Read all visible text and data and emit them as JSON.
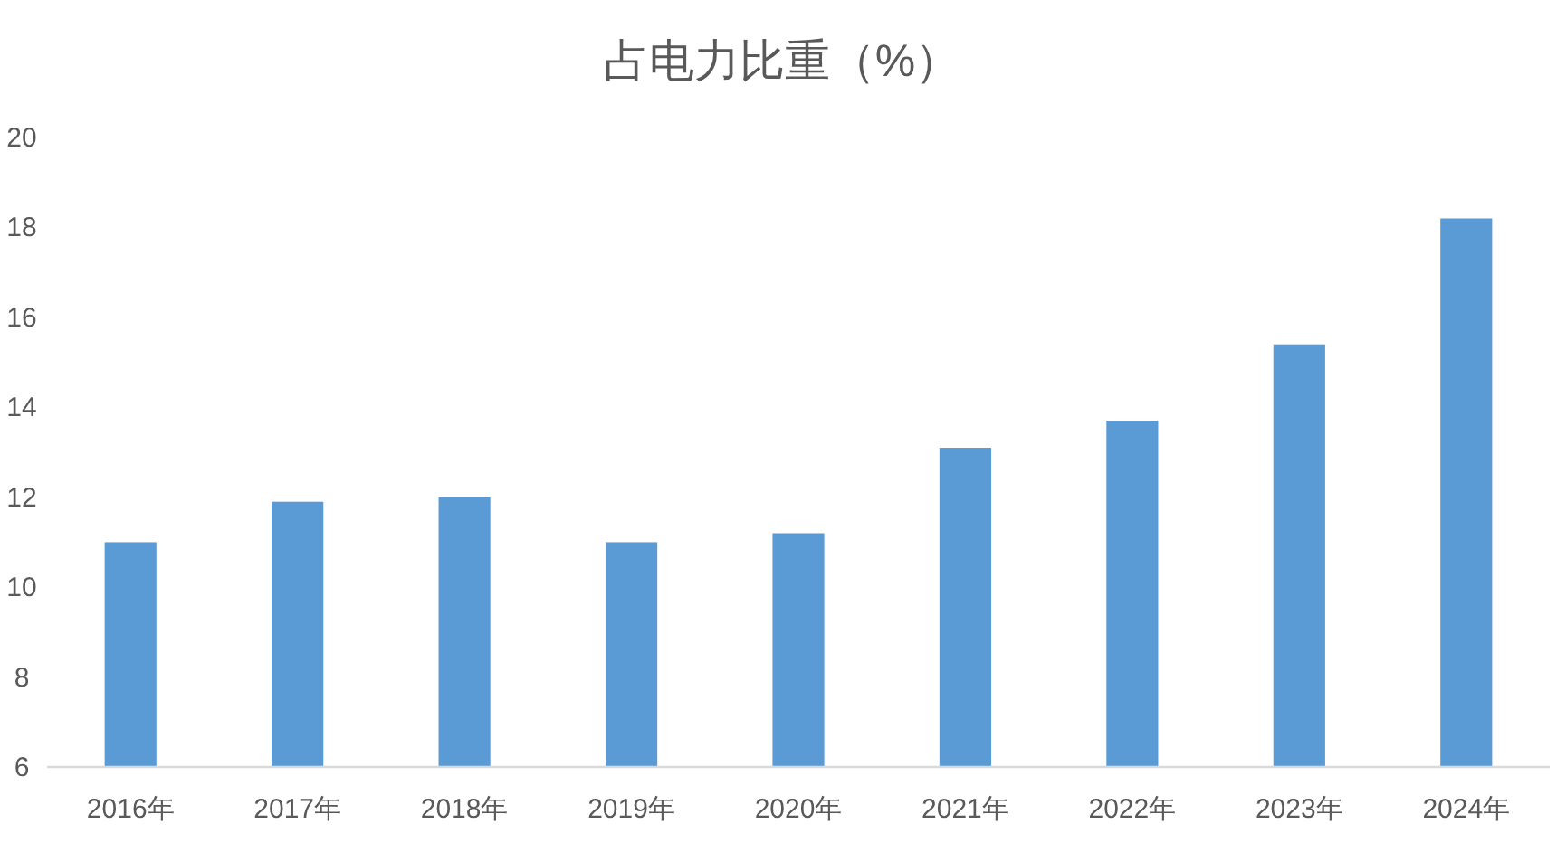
{
  "chart_data": {
    "type": "bar",
    "title": "占电力比重（%）",
    "categories": [
      "2016年",
      "2017年",
      "2018年",
      "2019年",
      "2020年",
      "2021年",
      "2022年",
      "2023年",
      "2024年"
    ],
    "values": [
      11.0,
      11.9,
      12.0,
      11.0,
      11.2,
      13.1,
      13.7,
      15.4,
      18.2
    ],
    "color": "#5b9bd5",
    "ylim": [
      6,
      20
    ],
    "yticks": [
      6,
      8,
      10,
      12,
      14,
      16,
      18,
      20
    ],
    "grid": false
  }
}
